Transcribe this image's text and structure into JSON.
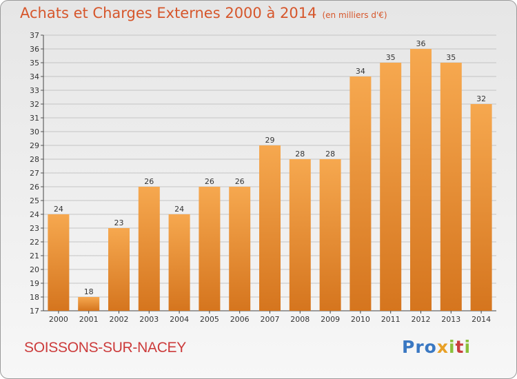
{
  "header": {
    "title": "Achats et Charges Externes 2000 à 2014",
    "unit": "(en milliers d'€)"
  },
  "footer": {
    "commune": "SOISSONS-SUR-NACEY",
    "logo_text": "Proxiti"
  },
  "colors": {
    "bar_light": "#f6a84f",
    "bar_dark": "#d5751e",
    "title": "#d6562b",
    "commune": "#cc3b3b"
  },
  "chart_data": {
    "type": "bar",
    "title": "Achats et Charges Externes 2000 à 2014",
    "subtitle": "(en milliers d'€)",
    "categories": [
      "2000",
      "2001",
      "2002",
      "2003",
      "2004",
      "2005",
      "2006",
      "2007",
      "2008",
      "2009",
      "2010",
      "2011",
      "2012",
      "2013",
      "2014"
    ],
    "values": [
      24,
      18,
      23,
      26,
      24,
      26,
      26,
      29,
      28,
      28,
      34,
      35,
      36,
      35,
      32
    ],
    "ylim": [
      17,
      37
    ],
    "yticks": [
      17,
      18,
      19,
      20,
      21,
      22,
      23,
      24,
      25,
      26,
      27,
      28,
      29,
      30,
      31,
      32,
      33,
      34,
      35,
      36,
      37
    ],
    "grid": true,
    "data_labels": true,
    "legend": "none"
  }
}
